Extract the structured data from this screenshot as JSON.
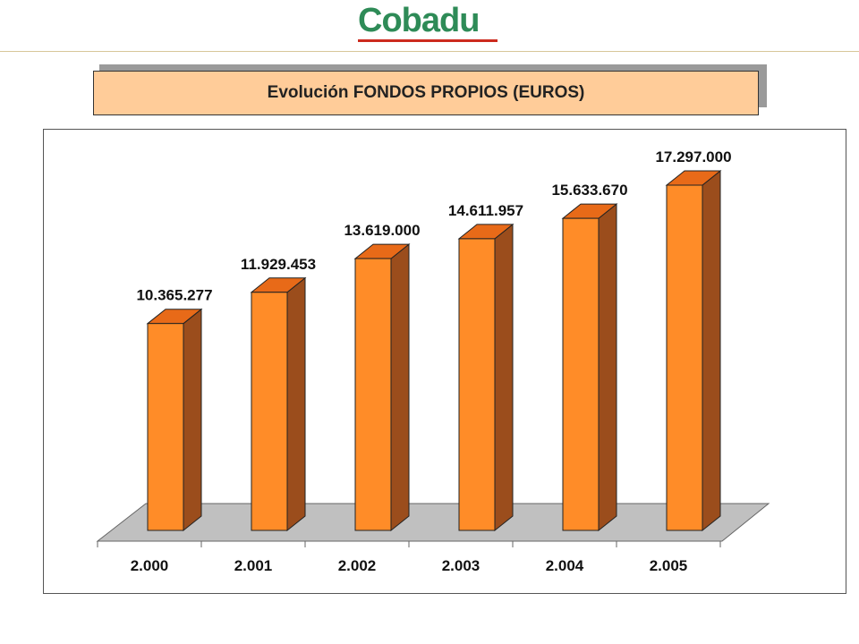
{
  "logo": {
    "text": "Cobadu",
    "color": "#2e8b57",
    "line_color": "#cc2a1e"
  },
  "title": "Evolución FONDOS PROPIOS (EUROS)",
  "colors": {
    "bar_front": "#ff8c28",
    "bar_side": "#9b4d1c",
    "bar_top": "#e86a18",
    "floor": "#c0c0c0",
    "title_bg": "#ffcc99"
  },
  "chart_data": {
    "type": "bar",
    "title": "Evolución FONDOS PROPIOS (EUROS)",
    "categories": [
      "2.000",
      "2.001",
      "2.002",
      "2.003",
      "2.004",
      "2.005"
    ],
    "values": [
      10365277,
      11929453,
      13619000,
      14611957,
      15633670,
      17297000
    ],
    "value_labels": [
      "10.365.277",
      "11.929.453",
      "13.619.000",
      "14.611.957",
      "15.633.670",
      "17.297.000"
    ],
    "xlabel": "",
    "ylabel": "",
    "ylim": [
      0,
      17297000
    ],
    "grid": false,
    "legend": "none",
    "style": "3d-bar"
  }
}
